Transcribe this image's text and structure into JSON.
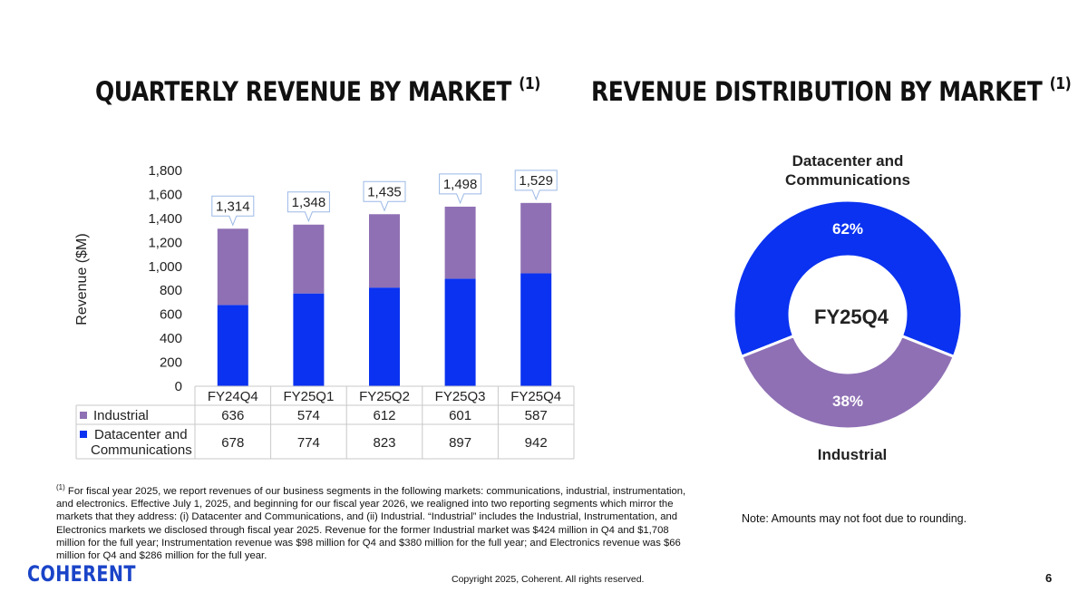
{
  "colors": {
    "industrial": "#8f70b4",
    "datacenter": "#0a32f0",
    "logo": "#1a44c8"
  },
  "titles": {
    "left": "QUARTERLY REVENUE BY MARKET",
    "right": "REVENUE DISTRIBUTION BY MARKET",
    "footnote_marker": "(1)"
  },
  "chart_data": [
    {
      "type": "bar",
      "stacked": true,
      "ylabel": "Revenue ($M)",
      "ylim": [
        0,
        1800
      ],
      "yticks": [
        "0",
        "200",
        "400",
        "600",
        "800",
        "1,000",
        "1,200",
        "1,400",
        "1,600",
        "1,800"
      ],
      "categories": [
        "FY24Q4",
        "FY25Q1",
        "FY25Q2",
        "FY25Q3",
        "FY25Q4"
      ],
      "series": [
        {
          "name": "Industrial",
          "values": [
            636,
            574,
            612,
            601,
            587
          ],
          "labels": [
            "636",
            "574",
            "612",
            "601",
            "587"
          ]
        },
        {
          "name": "Datacenter and Communications",
          "name_lines": [
            "Datacenter and",
            "Communications"
          ],
          "values": [
            678,
            774,
            823,
            897,
            942
          ],
          "labels": [
            "678",
            "774",
            "823",
            "897",
            "942"
          ]
        }
      ],
      "totals": [
        1314,
        1348,
        1435,
        1498,
        1529
      ],
      "total_labels": [
        "1,314",
        "1,348",
        "1,435",
        "1,498",
        "1,529"
      ]
    },
    {
      "type": "pie",
      "donut": true,
      "center_label": "FY25Q4",
      "slices": [
        {
          "name": "Datacenter and Communications",
          "value": 62,
          "label": "62%",
          "name_lines": [
            "Datacenter and",
            "Communications"
          ]
        },
        {
          "name": "Industrial",
          "value": 38,
          "label": "38%",
          "name_lines": [
            "Industrial"
          ]
        }
      ]
    }
  ],
  "footnote": {
    "marker": "(1)",
    "text": "For fiscal year 2025, we report revenues of our business segments in the following markets: communications, industrial, instrumentation, and electronics. Effective July 1, 2025, and beginning for our fiscal year 2026, we realigned into two reporting segments which mirror the markets that they address: (i) Datacenter and Communications, and (ii) Industrial. “Industrial” includes the Industrial, Instrumentation, and Electronics markets we disclosed through fiscal year 2025. Revenue for the former Industrial market was $424 million in Q4 and $1,708 million for the full year; Instrumentation revenue was $98 million for Q4 and $380 million for the full year; and Electronics revenue was $66 million for Q4 and $286 million for the full year."
  },
  "note": "Note: Amounts may not foot due to rounding.",
  "copyright": "Copyright 2025, Coherent. All rights reserved.",
  "page_number": "6",
  "logo_text": "COHERENT"
}
